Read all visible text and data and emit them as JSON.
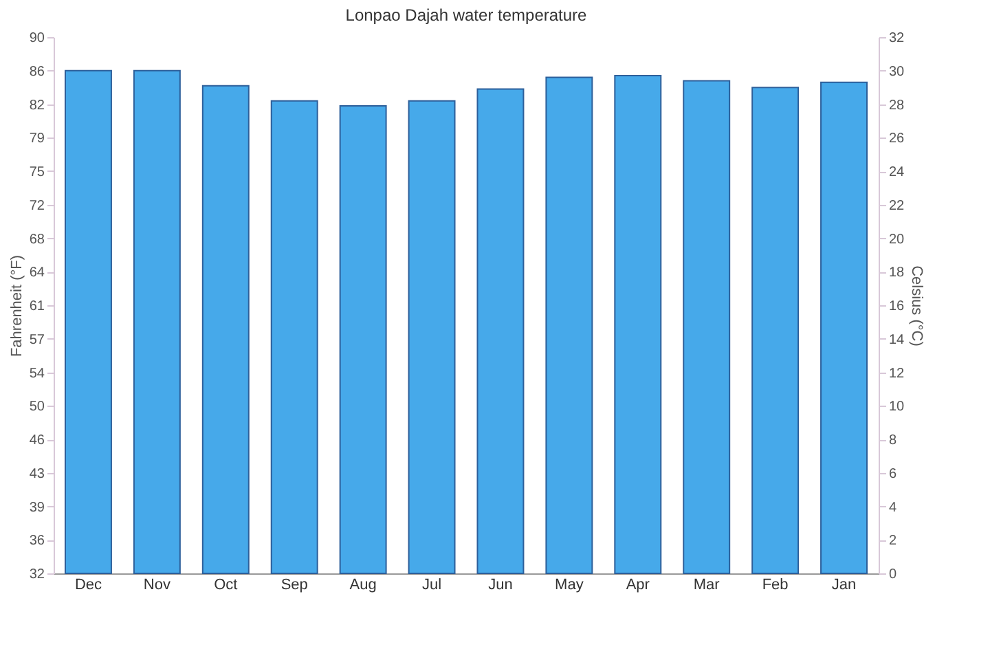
{
  "chart_data": {
    "type": "bar",
    "title": "Lonpao Dajah water temperature",
    "ylabel": "Fahrenheit (°F)",
    "y2label": "Celsius (°C)",
    "categories": [
      "Dec",
      "Nov",
      "Oct",
      "Sep",
      "Aug",
      "Jul",
      "Jun",
      "May",
      "Apr",
      "Mar",
      "Feb",
      "Jan"
    ],
    "series": [
      {
        "color": "#46a9ea",
        "axis": "y2",
        "values": [
          30.0,
          30.0,
          29.1,
          28.2,
          27.9,
          28.2,
          28.9,
          29.6,
          29.7,
          29.4,
          29.0,
          29.3
        ]
      }
    ],
    "ylim": [
      32,
      89.6
    ],
    "yticks": [
      32,
      {
        "value": 35.6,
        "label": "36"
      },
      {
        "value": 39.2,
        "label": "39"
      },
      {
        "value": 42.8,
        "label": "43"
      },
      {
        "value": 46.4,
        "label": "46"
      },
      50,
      {
        "value": 53.6,
        "label": "54"
      },
      {
        "value": 57.2,
        "label": "57"
      },
      {
        "value": 60.8,
        "label": "61"
      },
      {
        "value": 64.4,
        "label": "64"
      },
      68,
      {
        "value": 71.6,
        "label": "72"
      },
      {
        "value": 75.2,
        "label": "75"
      },
      {
        "value": 78.8,
        "label": "79"
      },
      {
        "value": 82.4,
        "label": "82"
      },
      86,
      {
        "value": 89.6,
        "label": "90"
      }
    ],
    "y2lim": [
      0,
      32
    ],
    "y2ticks": [
      0,
      2,
      4,
      6,
      8,
      10,
      12,
      14,
      16,
      18,
      20,
      22,
      24,
      26,
      28,
      30,
      32
    ],
    "grid": false
  }
}
